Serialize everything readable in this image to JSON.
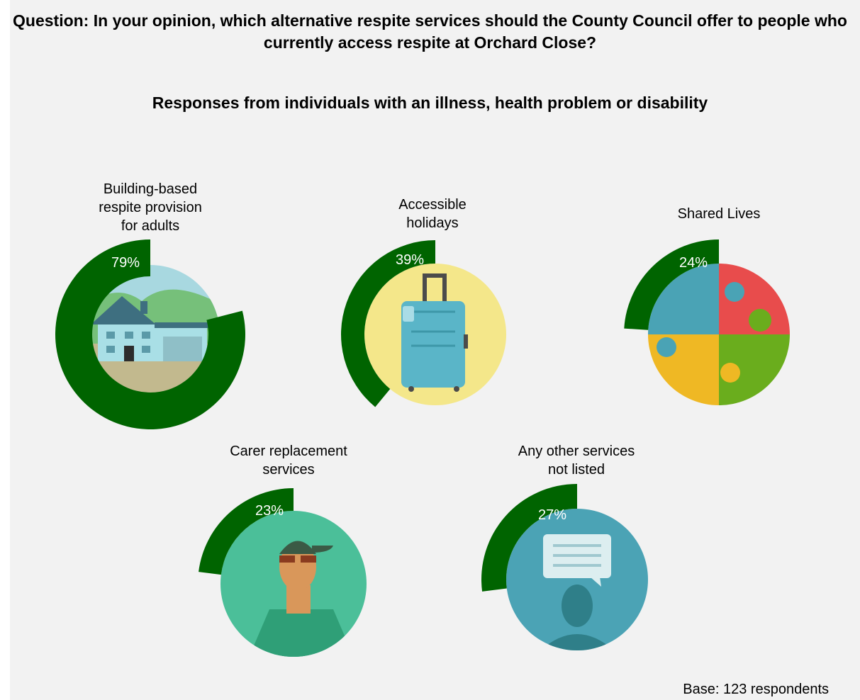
{
  "title": "Question: In your opinion, which alternative respite services should the County Council offer to people who currently access respite at Orchard Close?",
  "subtitle": "Responses from individuals with an illness, health problem or disability",
  "base": "Base: 123 respondents",
  "colors": {
    "ring": "#006400",
    "background": "#f2f2f2"
  },
  "chart_data": {
    "type": "radial-progress",
    "unit": "%",
    "ylim": [
      0,
      100
    ],
    "items": [
      {
        "label": "Building-based respite provision for adults",
        "label_lines": [
          "Building-based",
          "respite provision",
          "for adults"
        ],
        "value": 79,
        "display": "79%",
        "icon": "house-icon"
      },
      {
        "label": "Accessible holidays",
        "label_lines": [
          "Accessible",
          "holidays"
        ],
        "value": 39,
        "display": "39%",
        "icon": "suitcase-icon"
      },
      {
        "label": "Shared Lives",
        "label_lines": [
          "Shared Lives"
        ],
        "value": 24,
        "display": "24%",
        "icon": "puzzle-icon"
      },
      {
        "label": "Carer replacement services",
        "label_lines": [
          "Carer replacement",
          "services"
        ],
        "value": 23,
        "display": "23%",
        "icon": "carer-person-icon"
      },
      {
        "label": "Any other services not listed",
        "label_lines": [
          "Any other services",
          "not listed"
        ],
        "value": 27,
        "display": "27%",
        "icon": "speech-bubble-icon"
      }
    ]
  }
}
